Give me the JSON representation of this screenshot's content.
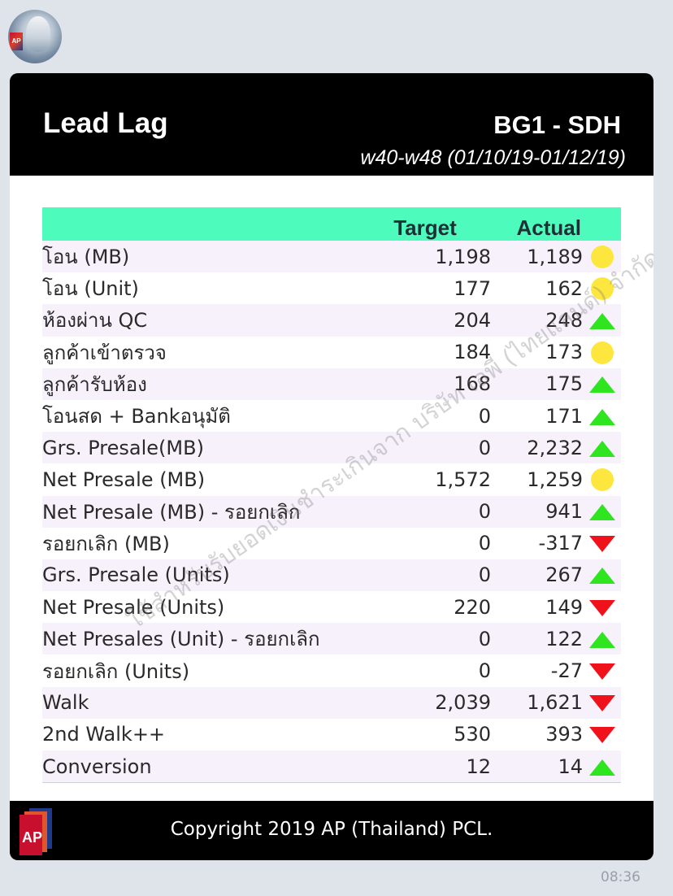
{
  "header": {
    "title": "Lead Lag",
    "region": "BG1 - SDH",
    "period": "w40-w48 (01/10/19-01/12/19)"
  },
  "table": {
    "columns": [
      "",
      "Target",
      "Actual",
      ""
    ],
    "rows": [
      {
        "label": "โอน (MB)",
        "target": "1,198",
        "actual": "1,189",
        "status": "yellow-circle"
      },
      {
        "label": "โอน (Unit)",
        "target": "177",
        "actual": "162",
        "status": "yellow-circle"
      },
      {
        "label": "ห้องผ่าน QC",
        "target": "204",
        "actual": "248",
        "status": "green-up"
      },
      {
        "label": "ลูกค้าเข้าตรวจ",
        "target": "184",
        "actual": "173",
        "status": "yellow-circle"
      },
      {
        "label": "ลูกค้ารับห้อง",
        "target": "168",
        "actual": "175",
        "status": "green-up"
      },
      {
        "label": "โอนสด + Bankอนุมัติ",
        "target": "0",
        "actual": "171",
        "status": "green-up"
      },
      {
        "label": "Grs. Presale(MB)",
        "target": "0",
        "actual": "2,232",
        "status": "green-up"
      },
      {
        "label": "Net Presale (MB)",
        "target": "1,572",
        "actual": "1,259",
        "status": "yellow-circle"
      },
      {
        "label": "Net Presale (MB) - รอยกเลิก",
        "target": "0",
        "actual": "941",
        "status": "green-up"
      },
      {
        "label": "รอยกเลิก (MB)",
        "target": "0",
        "actual": "-317",
        "status": "red-down"
      },
      {
        "label": "Grs. Presale (Units)",
        "target": "0",
        "actual": "267",
        "status": "green-up"
      },
      {
        "label": "Net Presale (Units)",
        "target": "220",
        "actual": "149",
        "status": "red-down"
      },
      {
        "label": "Net Presales (Unit) - รอยกเลิก",
        "target": "0",
        "actual": "122",
        "status": "green-up"
      },
      {
        "label": "รอยกเลิก (Units)",
        "target": "0",
        "actual": "-27",
        "status": "red-down"
      },
      {
        "label": "Walk",
        "target": "2,039",
        "actual": "1,621",
        "status": "red-down"
      },
      {
        "label": "2nd Walk++",
        "target": "530",
        "actual": "393",
        "status": "red-down"
      },
      {
        "label": "Conversion",
        "target": "12",
        "actual": "14",
        "status": "green-up"
      }
    ]
  },
  "watermark": "ใช้สำหรับรับยอดเงินชำระเกินจาก บริษัท เอพี (ไทยแลนด์) จำกัด (มหาชน) เท่านั้น",
  "footer": {
    "logo_text": "AP",
    "copyright": "Copyright 2019 AP (Thailand) PCL."
  },
  "message": {
    "time": "08:36"
  },
  "colors": {
    "header_bg": "#000000",
    "table_header_bg": "#4dfcbd",
    "row_stripe": "#f7f1fb",
    "status_yellow": "#fde73f",
    "status_green": "#2ee520",
    "status_red": "#f0121b"
  }
}
